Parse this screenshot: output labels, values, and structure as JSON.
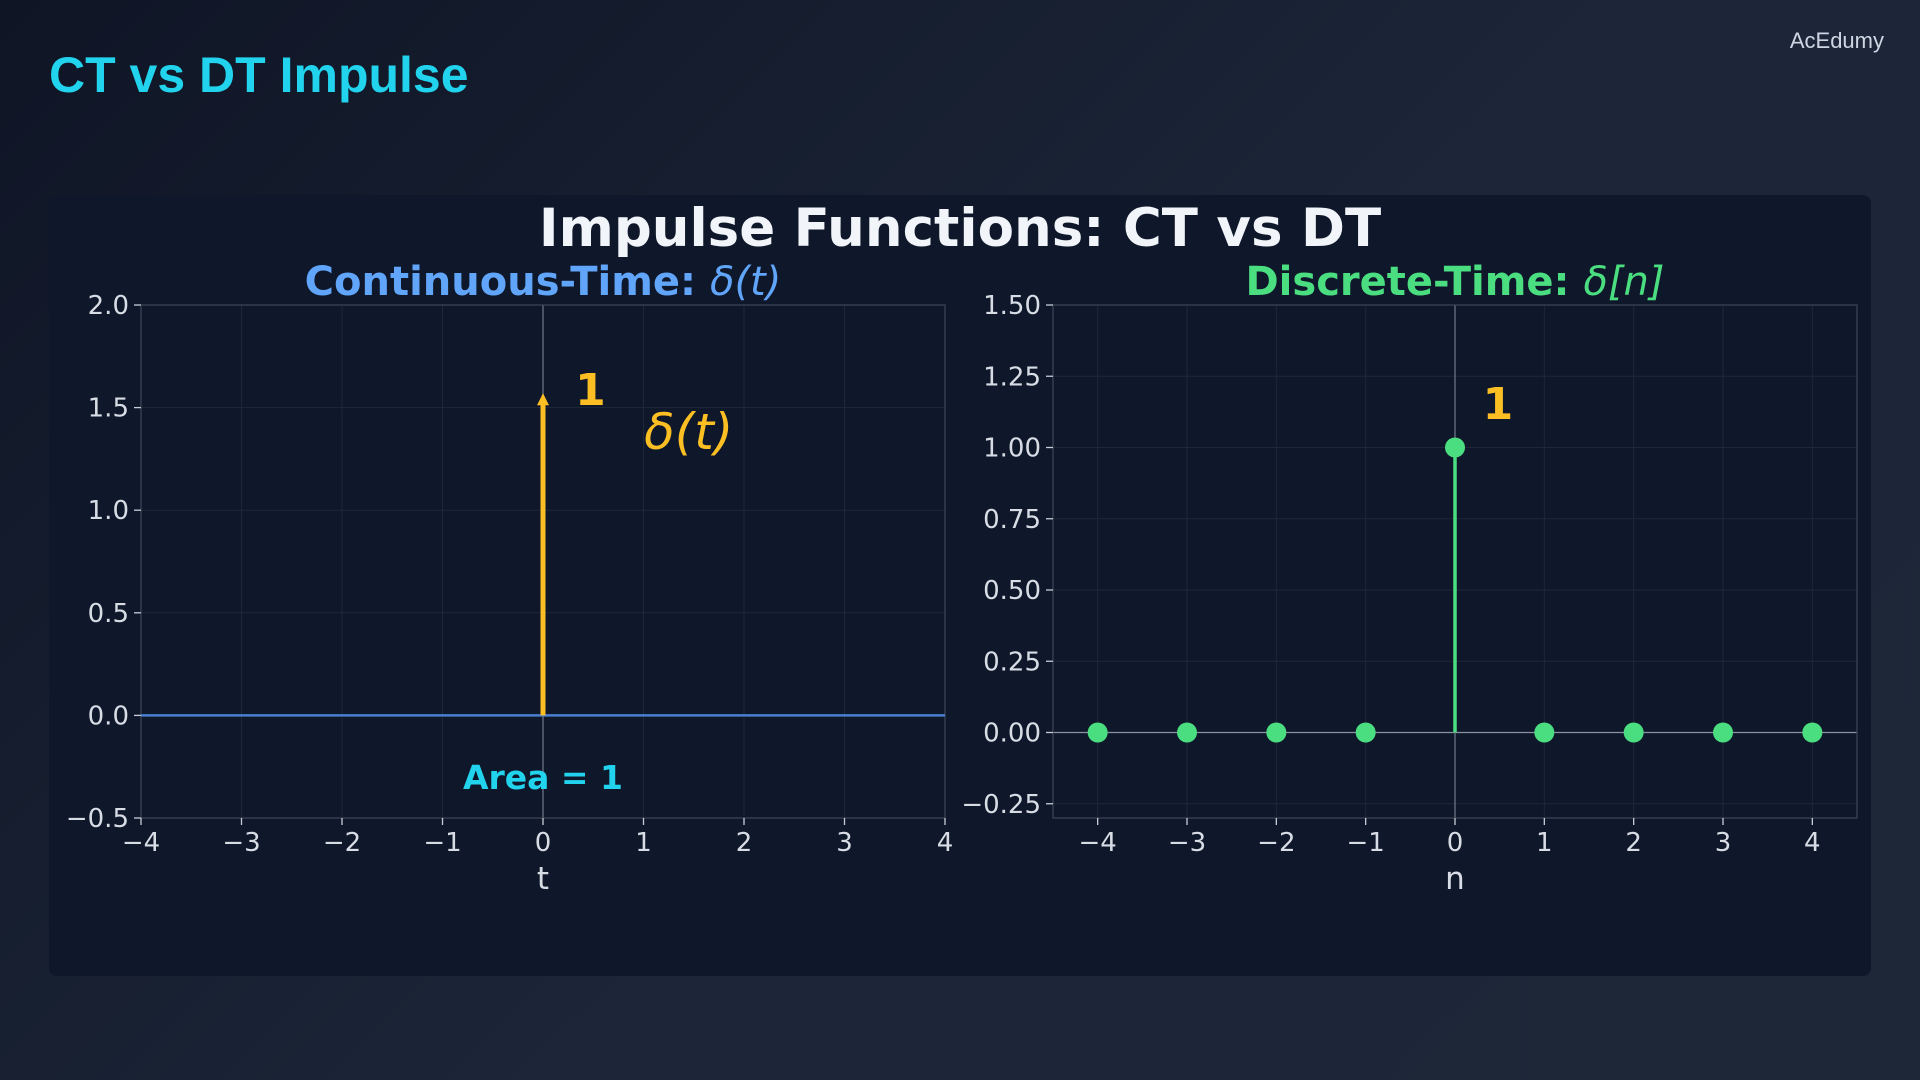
{
  "header": {
    "title": "CT vs DT Impulse",
    "brand": "AcEdumy"
  },
  "figure": {
    "suptitle": "Impulse Functions: CT vs DT"
  },
  "colors": {
    "ct_title": "#60a5fa",
    "dt_title": "#4ade80",
    "impulse": "#fbbf24",
    "baseline": "#4a7fd0",
    "stem": "#4ade80",
    "area_text": "#22d3ee"
  },
  "chart_data": [
    {
      "type": "line",
      "title_prefix": "Continuous-Time: ",
      "title_math": "δ(t)",
      "xlabel": "t",
      "ylabel": "",
      "xlim": [
        -4,
        4
      ],
      "ylim": [
        -0.5,
        2.0
      ],
      "xticks": [
        -4,
        -3,
        -2,
        -1,
        0,
        1,
        2,
        3,
        4
      ],
      "xtick_labels": [
        "−4",
        "−3",
        "−2",
        "−1",
        "0",
        "1",
        "2",
        "3",
        "4"
      ],
      "yticks": [
        -0.5,
        0.0,
        0.5,
        1.0,
        1.5,
        2.0
      ],
      "ytick_labels": [
        "−0.5",
        "0.0",
        "0.5",
        "1.0",
        "1.5",
        "2.0"
      ],
      "grid": true,
      "baseline": {
        "x": [
          -4,
          4
        ],
        "y": [
          0,
          0
        ]
      },
      "impulse_arrow": {
        "x": 0,
        "from": 0,
        "to": 1.57
      },
      "annotations": [
        {
          "text": "1",
          "x": 0.32,
          "y": 1.58
        },
        {
          "text": "δ(t)",
          "x": 1.45,
          "y": 1.38
        },
        {
          "text": "Area = 1",
          "x": 0,
          "y": -0.3
        }
      ]
    },
    {
      "type": "scatter",
      "title_prefix": "Discrete-Time: ",
      "title_math": "δ[n]",
      "xlabel": "n",
      "ylabel": "",
      "xlim": [
        -4.5,
        4.5
      ],
      "ylim": [
        -0.3,
        1.5
      ],
      "xticks": [
        -4,
        -3,
        -2,
        -1,
        0,
        1,
        2,
        3,
        4
      ],
      "xtick_labels": [
        "−4",
        "−3",
        "−2",
        "−1",
        "0",
        "1",
        "2",
        "3",
        "4"
      ],
      "yticks": [
        -0.25,
        0.0,
        0.25,
        0.5,
        0.75,
        1.0,
        1.25,
        1.5
      ],
      "ytick_labels": [
        "−0.25",
        "0.00",
        "0.25",
        "0.50",
        "0.75",
        "1.00",
        "1.25",
        "1.50"
      ],
      "grid": true,
      "x": [
        -4,
        -3,
        -2,
        -1,
        0,
        1,
        2,
        3,
        4
      ],
      "y": [
        0,
        0,
        0,
        0,
        1,
        0,
        0,
        0,
        0
      ],
      "annotations": [
        {
          "text": "1",
          "x": 0.48,
          "y": 1.15
        }
      ]
    }
  ]
}
